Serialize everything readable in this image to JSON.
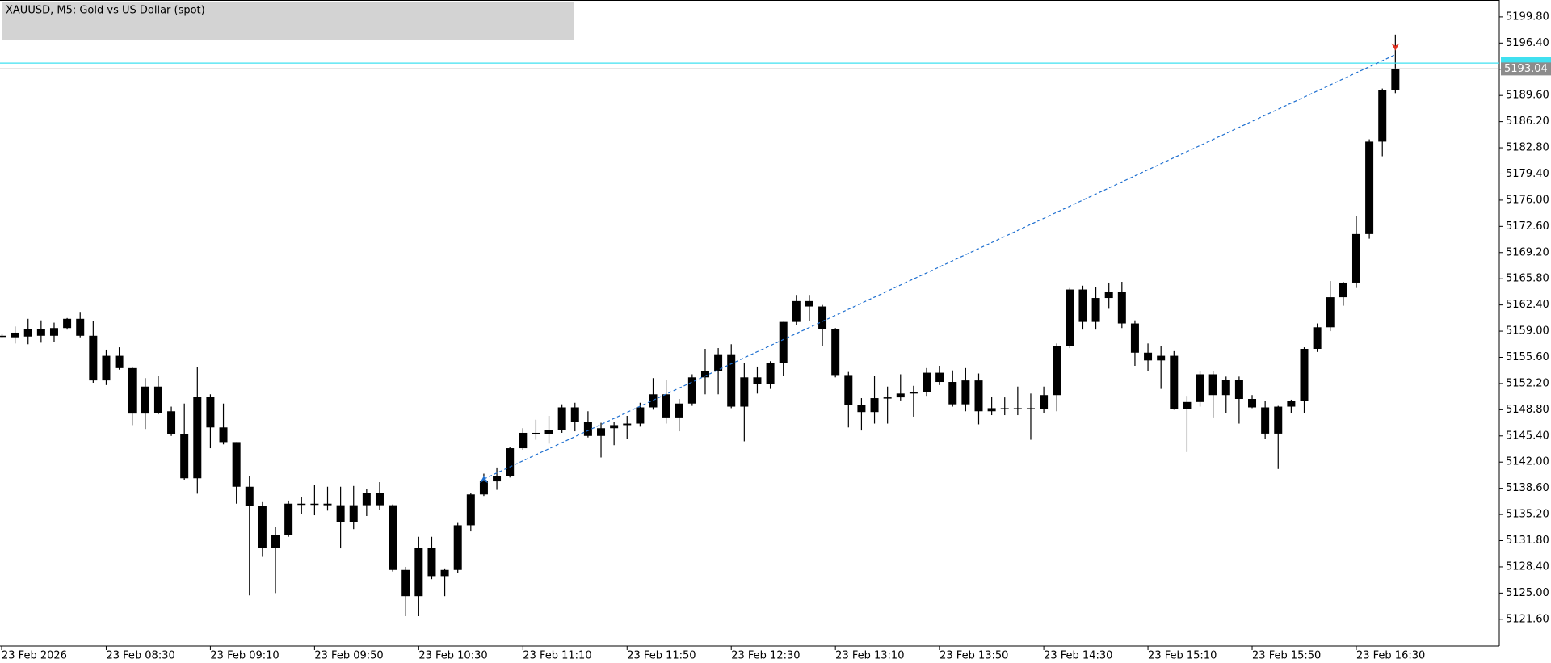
{
  "chart_data": {
    "type": "candlestick",
    "title": "XAUUSD, M5:  Gold vs US Dollar (spot)",
    "x": [
      "23 Feb 07:50",
      "23 Feb 07:55",
      "23 Feb 08:00",
      "23 Feb 08:05",
      "23 Feb 08:10",
      "23 Feb 08:15",
      "23 Feb 08:20",
      "23 Feb 08:25",
      "23 Feb 08:30",
      "23 Feb 08:35",
      "23 Feb 08:40",
      "23 Feb 08:45",
      "23 Feb 08:50",
      "23 Feb 08:55",
      "23 Feb 09:00",
      "23 Feb 09:05",
      "23 Feb 09:10",
      "23 Feb 09:15",
      "23 Feb 09:20",
      "23 Feb 09:25",
      "23 Feb 09:30",
      "23 Feb 09:35",
      "23 Feb 09:40",
      "23 Feb 09:45",
      "23 Feb 09:50",
      "23 Feb 09:55",
      "23 Feb 10:00",
      "23 Feb 10:05",
      "23 Feb 10:10",
      "23 Feb 10:15",
      "23 Feb 10:20",
      "23 Feb 10:25",
      "23 Feb 10:30",
      "23 Feb 10:35",
      "23 Feb 10:40",
      "23 Feb 10:45",
      "23 Feb 10:50",
      "23 Feb 10:55",
      "23 Feb 11:00",
      "23 Feb 11:05",
      "23 Feb 11:10",
      "23 Feb 11:15",
      "23 Feb 11:20",
      "23 Feb 11:25",
      "23 Feb 11:30",
      "23 Feb 11:35",
      "23 Feb 11:40",
      "23 Feb 11:45",
      "23 Feb 11:50",
      "23 Feb 11:55",
      "23 Feb 12:00",
      "23 Feb 12:05",
      "23 Feb 12:10",
      "23 Feb 12:15",
      "23 Feb 12:20",
      "23 Feb 12:25",
      "23 Feb 12:30",
      "23 Feb 12:35",
      "23 Feb 12:40",
      "23 Feb 12:45",
      "23 Feb 12:50",
      "23 Feb 12:55",
      "23 Feb 13:00",
      "23 Feb 13:05",
      "23 Feb 13:10",
      "23 Feb 13:15",
      "23 Feb 13:20",
      "23 Feb 13:25",
      "23 Feb 13:30",
      "23 Feb 13:35",
      "23 Feb 13:40",
      "23 Feb 13:45",
      "23 Feb 13:50",
      "23 Feb 13:55",
      "23 Feb 14:00",
      "23 Feb 14:05",
      "23 Feb 14:10",
      "23 Feb 14:15",
      "23 Feb 14:20",
      "23 Feb 14:25",
      "23 Feb 14:30",
      "23 Feb 14:35",
      "23 Feb 14:40",
      "23 Feb 14:45",
      "23 Feb 14:50",
      "23 Feb 14:55",
      "23 Feb 15:00",
      "23 Feb 15:05",
      "23 Feb 15:10",
      "23 Feb 15:15",
      "23 Feb 15:20",
      "23 Feb 15:25",
      "23 Feb 15:30",
      "23 Feb 15:35",
      "23 Feb 15:40",
      "23 Feb 15:45",
      "23 Feb 15:50",
      "23 Feb 15:55",
      "23 Feb 16:00",
      "23 Feb 16:05",
      "23 Feb 16:10",
      "23 Feb 16:15",
      "23 Feb 16:20",
      "23 Feb 16:25",
      "23 Feb 16:30",
      "23 Feb 16:35",
      "23 Feb 16:40",
      "23 Feb 16:45"
    ],
    "open": [
      5158.4,
      5158.2,
      5158.3,
      5159.3,
      5158.4,
      5159.4,
      5160.6,
      5158.4,
      5152.6,
      5155.8,
      5154.2,
      5148.3,
      5151.8,
      5148.6,
      5145.6,
      5139.9,
      5150.5,
      5146.5,
      5144.6,
      5138.8,
      5136.3,
      5130.9,
      5132.5,
      5136.6,
      5136.6,
      5136.6,
      5136.4,
      5134.2,
      5136.4,
      5138.0,
      5136.4,
      5128.0,
      5124.6,
      5130.9,
      5127.2,
      5128.0,
      5133.8,
      5137.8,
      5139.5,
      5140.2,
      5143.8,
      5145.8,
      5145.6,
      5146.2,
      5149.1,
      5147.2,
      5145.4,
      5146.4,
      5146.8,
      5147.0,
      5149.1,
      5150.8,
      5147.8,
      5149.6,
      5153.0,
      5153.8,
      5156.0,
      5149.2,
      5153.0,
      5152.1,
      5154.9,
      5160.2,
      5162.9,
      5162.2,
      5159.3,
      5153.3,
      5149.4,
      5148.5,
      5150.3,
      5150.4,
      5150.9,
      5151.1,
      5153.6,
      5152.4,
      5149.5,
      5152.6,
      5148.6,
      5149.0,
      5148.9,
      5149.0,
      5148.9,
      5150.7,
      5157.1,
      5164.4,
      5160.2,
      5163.3,
      5164.1,
      5160.0,
      5156.2,
      5155.2,
      5155.8,
      5148.9,
      5149.8,
      5153.4,
      5150.7,
      5152.7,
      5150.2,
      5149.1,
      5145.7,
      5149.2,
      5149.9,
      5156.7,
      5159.5,
      5163.4,
      5165.3,
      5171.6,
      5183.6,
      5190.3
    ],
    "high": [
      5158.6,
      5159.6,
      5160.6,
      5160.4,
      5160.1,
      5160.7,
      5161.5,
      5160.3,
      5156.6,
      5156.9,
      5154.4,
      5152.9,
      5153.2,
      5149.2,
      5149.6,
      5154.3,
      5150.8,
      5149.6,
      5144.6,
      5140.2,
      5136.8,
      5133.6,
      5137.0,
      5137.5,
      5139.0,
      5138.8,
      5138.8,
      5138.9,
      5138.5,
      5139.4,
      5136.5,
      5128.4,
      5132.3,
      5132.3,
      5128.2,
      5134.1,
      5138.0,
      5140.5,
      5141.3,
      5144.0,
      5146.4,
      5147.5,
      5148.0,
      5149.5,
      5149.7,
      5148.6,
      5147.1,
      5147.2,
      5148.0,
      5149.7,
      5152.9,
      5152.7,
      5150.2,
      5153.4,
      5156.7,
      5156.8,
      5157.3,
      5154.9,
      5154.4,
      5155.1,
      5160.2,
      5163.7,
      5163.7,
      5162.4,
      5159.4,
      5153.7,
      5150.3,
      5153.2,
      5151.8,
      5153.4,
      5151.9,
      5154.2,
      5154.5,
      5153.9,
      5154.2,
      5153.5,
      5150.5,
      5150.4,
      5151.8,
      5150.9,
      5151.8,
      5157.4,
      5164.6,
      5164.9,
      5164.7,
      5165.3,
      5165.4,
      5160.4,
      5157.4,
      5157.1,
      5156.4,
      5150.6,
      5153.8,
      5153.8,
      5153.1,
      5153.1,
      5150.7,
      5149.9,
      5149.3,
      5150.1,
      5156.9,
      5160.0,
      5165.5,
      5165.4,
      5173.9,
      5183.9,
      5190.5,
      5197.5
    ],
    "low": [
      5158.2,
      5157.4,
      5157.3,
      5157.5,
      5157.6,
      5159.2,
      5158.2,
      5152.3,
      5152.0,
      5154.0,
      5146.8,
      5146.3,
      5148.2,
      5145.4,
      5139.7,
      5137.9,
      5143.8,
      5144.3,
      5136.6,
      5124.7,
      5129.7,
      5125.0,
      5132.3,
      5135.3,
      5135.1,
      5135.7,
      5130.8,
      5133.3,
      5135.0,
      5135.8,
      5127.8,
      5122.0,
      5122.0,
      5126.8,
      5124.6,
      5127.6,
      5133.0,
      5137.6,
      5138.4,
      5140.0,
      5143.6,
      5144.9,
      5144.4,
      5145.8,
      5146.0,
      5145.2,
      5142.6,
      5144.2,
      5145.0,
      5146.6,
      5148.8,
      5147.0,
      5146.0,
      5149.3,
      5150.8,
      5150.8,
      5149.0,
      5144.7,
      5150.9,
      5151.5,
      5153.2,
      5159.8,
      5160.3,
      5157.1,
      5153.0,
      5146.5,
      5146.1,
      5147.0,
      5147.0,
      5150.0,
      5147.9,
      5150.6,
      5152.0,
      5149.2,
      5148.6,
      5146.9,
      5148.1,
      5148.1,
      5148.1,
      5144.9,
      5148.4,
      5148.6,
      5156.8,
      5159.2,
      5159.2,
      5161.9,
      5159.4,
      5154.5,
      5153.8,
      5151.5,
      5148.8,
      5143.3,
      5149.2,
      5147.8,
      5148.4,
      5147.0,
      5149.0,
      5145.0,
      5141.1,
      5148.4,
      5148.4,
      5156.3,
      5159.0,
      5162.3,
      5164.6,
      5171.0,
      5181.7,
      5189.9
    ],
    "close": [
      5158.4,
      5158.8,
      5159.3,
      5158.4,
      5159.4,
      5160.6,
      5158.4,
      5152.6,
      5155.8,
      5154.2,
      5148.3,
      5151.8,
      5148.4,
      5145.6,
      5139.9,
      5150.5,
      5146.5,
      5144.6,
      5138.8,
      5136.3,
      5130.9,
      5132.5,
      5136.6,
      5136.6,
      5136.6,
      5136.4,
      5134.2,
      5136.4,
      5138.0,
      5136.4,
      5128.0,
      5124.6,
      5130.9,
      5127.2,
      5128.0,
      5133.8,
      5137.8,
      5139.5,
      5140.2,
      5143.8,
      5145.8,
      5145.6,
      5146.2,
      5149.1,
      5147.2,
      5145.4,
      5146.4,
      5146.8,
      5147.0,
      5149.1,
      5150.8,
      5147.8,
      5149.6,
      5153.0,
      5153.8,
      5156.0,
      5149.2,
      5153.0,
      5152.1,
      5154.9,
      5160.2,
      5162.9,
      5162.2,
      5159.3,
      5153.3,
      5149.4,
      5148.5,
      5150.3,
      5150.4,
      5150.9,
      5151.1,
      5153.6,
      5152.4,
      5149.5,
      5152.6,
      5148.6,
      5149.0,
      5148.9,
      5149.0,
      5148.9,
      5150.7,
      5157.1,
      5164.4,
      5160.2,
      5163.3,
      5164.1,
      5160.0,
      5156.2,
      5155.2,
      5155.8,
      5148.9,
      5149.8,
      5153.4,
      5150.7,
      5152.7,
      5150.2,
      5149.1,
      5145.7,
      5149.2,
      5149.9,
      5156.7,
      5159.5,
      5163.4,
      5165.3,
      5171.6,
      5183.6,
      5190.3,
      5193.04
    ],
    "color": "#000000",
    "ylim": [
      5118.12,
      5201.99
    ],
    "yticks": [
      {
        "value": 5121.6,
        "label": "5121.60"
      },
      {
        "value": 5125.0,
        "label": "5125.00"
      },
      {
        "value": 5128.4,
        "label": "5128.40"
      },
      {
        "value": 5131.8,
        "label": "5131.80"
      },
      {
        "value": 5135.2,
        "label": "5135.20"
      },
      {
        "value": 5138.6,
        "label": "5138.60"
      },
      {
        "value": 5142.0,
        "label": "5142.00"
      },
      {
        "value": 5145.4,
        "label": "5145.40"
      },
      {
        "value": 5148.8,
        "label": "5148.80"
      },
      {
        "value": 5152.2,
        "label": "5152.20"
      },
      {
        "value": 5155.6,
        "label": "5155.60"
      },
      {
        "value": 5159.0,
        "label": "5159.00"
      },
      {
        "value": 5162.4,
        "label": "5162.40"
      },
      {
        "value": 5165.8,
        "label": "5165.80"
      },
      {
        "value": 5169.2,
        "label": "5169.20"
      },
      {
        "value": 5172.6,
        "label": "5172.60"
      },
      {
        "value": 5176.0,
        "label": "5176.00"
      },
      {
        "value": 5179.4,
        "label": "5179.40"
      },
      {
        "value": 5182.8,
        "label": "5182.80"
      },
      {
        "value": 5186.2,
        "label": "5186.20"
      },
      {
        "value": 5189.6,
        "label": "5189.60"
      },
      {
        "value": 5193.0,
        "label": "5193.00"
      },
      {
        "value": 5196.4,
        "label": "5196.40"
      },
      {
        "value": 5199.8,
        "label": "5199.80"
      }
    ],
    "xticks": [
      "23 Feb 2026",
      "23 Feb 08:30",
      "23 Feb 09:10",
      "23 Feb 09:50",
      "23 Feb 10:30",
      "23 Feb 11:10",
      "23 Feb 11:50",
      "23 Feb 12:30",
      "23 Feb 13:10",
      "23 Feb 13:50",
      "23 Feb 14:30",
      "23 Feb 15:10",
      "23 Feb 15:50",
      "23 Feb 16:30"
    ],
    "bid": {
      "value": 5193.04,
      "label": "5193.04"
    },
    "ask": 5193.8,
    "trade": {
      "open_time": "23 Feb 10:55",
      "open_price": 5139.8,
      "close_time": "23 Feb 16:45",
      "close_price": 5194.9
    }
  }
}
